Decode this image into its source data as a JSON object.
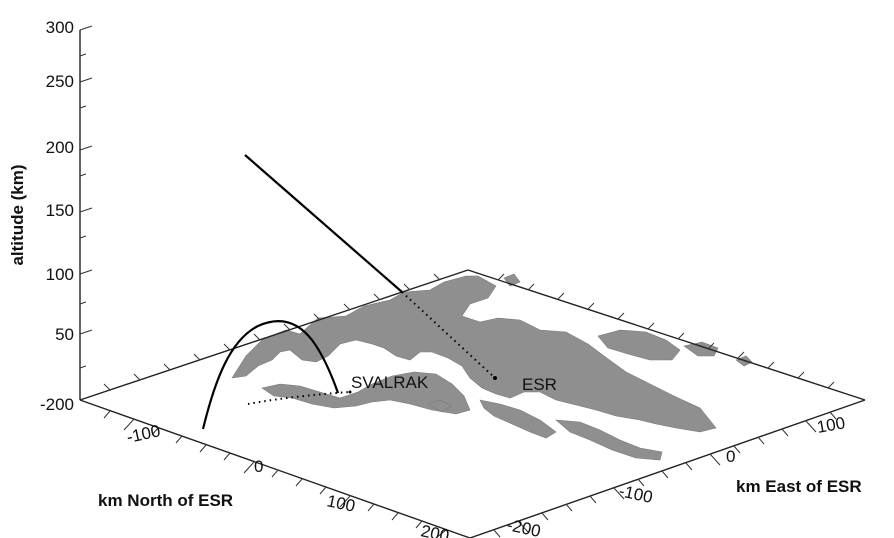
{
  "figure": {
    "z_axis": {
      "title": "altitude (km)",
      "tick_labels": [
        "300",
        "250",
        "200",
        "150",
        "100",
        "50",
        "-200"
      ]
    },
    "north_axis": {
      "title": "km North of ESR",
      "tick_labels": [
        "-100",
        "0",
        "100",
        "200"
      ]
    },
    "east_axis": {
      "title": "km East of ESR",
      "tick_labels": [
        "100",
        "0",
        "-100",
        "-200"
      ]
    },
    "sites": {
      "svalrak": "SVALRAK",
      "esr": "ESR"
    },
    "colors": {
      "land": "#8f8f8f",
      "lines": "#000000",
      "background": "#ffffff"
    }
  }
}
